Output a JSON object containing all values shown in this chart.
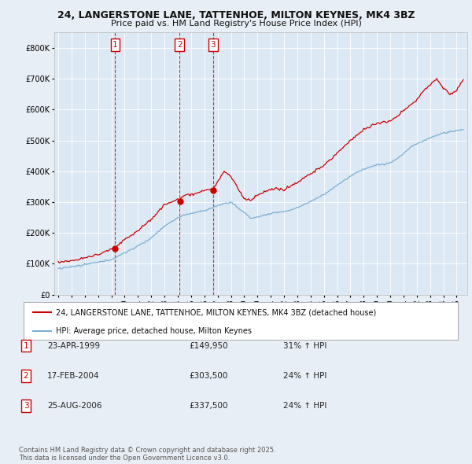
{
  "title": "24, LANGERSTONE LANE, TATTENHOE, MILTON KEYNES, MK4 3BZ",
  "subtitle": "Price paid vs. HM Land Registry's House Price Index (HPI)",
  "background_color": "#e8eef5",
  "plot_bg_color": "#dce8f4",
  "legend_line1": "24, LANGERSTONE LANE, TATTENHOE, MILTON KEYNES, MK4 3BZ (detached house)",
  "legend_line2": "HPI: Average price, detached house, Milton Keynes",
  "red_color": "#cc0000",
  "blue_color": "#7ab0d4",
  "transactions": [
    {
      "num": 1,
      "date": "23-APR-1999",
      "price": 149950,
      "hpi_pct": "31% ↑ HPI",
      "year": 1999.29
    },
    {
      "num": 2,
      "date": "17-FEB-2004",
      "price": 303500,
      "hpi_pct": "24% ↑ HPI",
      "year": 2004.13
    },
    {
      "num": 3,
      "date": "25-AUG-2006",
      "price": 337500,
      "hpi_pct": "24% ↑ HPI",
      "year": 2006.65
    }
  ],
  "footer": "Contains HM Land Registry data © Crown copyright and database right 2025.\nThis data is licensed under the Open Government Licence v3.0.",
  "ylim": [
    0,
    850000
  ],
  "yticks": [
    0,
    100000,
    200000,
    300000,
    400000,
    500000,
    600000,
    700000,
    800000
  ],
  "xlim_start": 1994.7,
  "xlim_end": 2025.8
}
